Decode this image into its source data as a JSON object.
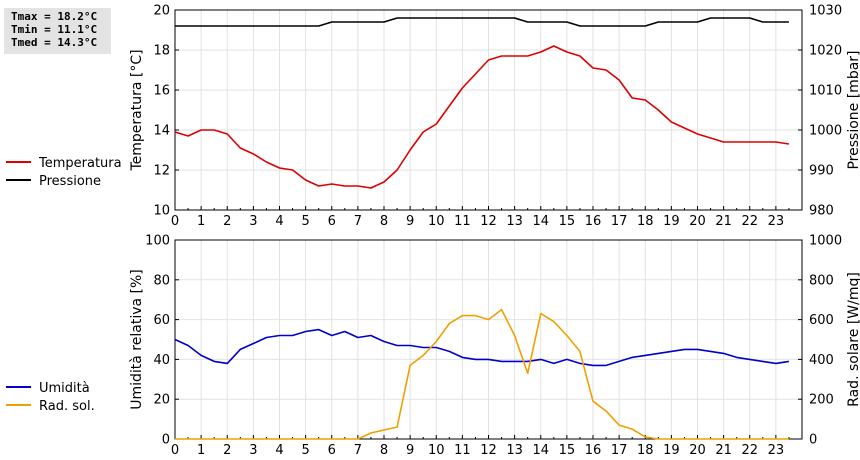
{
  "stats": {
    "tmax": "Tmax = 18.2°C",
    "tmin": "Tmin = 11.1°C",
    "tmed": "Tmed = 14.3°C"
  },
  "chart_data": [
    {
      "type": "line",
      "x": [
        0,
        0.5,
        1,
        1.5,
        2,
        2.5,
        3,
        3.5,
        4,
        4.5,
        5,
        5.5,
        6,
        6.5,
        7,
        7.5,
        8,
        8.5,
        9,
        9.5,
        10,
        10.5,
        11,
        11.5,
        12,
        12.5,
        13,
        13.5,
        14,
        14.5,
        15,
        15.5,
        16,
        16.5,
        17,
        17.5,
        18,
        18.5,
        19,
        19.5,
        20,
        20.5,
        21,
        21.5,
        22,
        22.5,
        23,
        23.5
      ],
      "xlim": [
        0,
        24
      ],
      "xticks": [
        "0",
        "1",
        "2",
        "3",
        "4",
        "5",
        "6",
        "7",
        "8",
        "9",
        "10",
        "11",
        "12",
        "13",
        "14",
        "15",
        "16",
        "17",
        "18",
        "19",
        "20",
        "21",
        "22",
        "23"
      ],
      "ylabel": "Temperatura [°C]",
      "ylim": [
        10,
        20
      ],
      "yticks": [
        "10",
        "12",
        "14",
        "16",
        "18",
        "20"
      ],
      "y2label": "Pressione [mbar]",
      "y2lim": [
        980,
        1030
      ],
      "y2ticks": [
        "980",
        "990",
        "1000",
        "1010",
        "1020",
        "1030"
      ],
      "grid": true,
      "legend_position": "left",
      "series": [
        {
          "name": "Temperatura",
          "axis": "left",
          "color": "#dd0000",
          "values": [
            13.9,
            13.7,
            14.0,
            14.0,
            13.8,
            13.1,
            12.8,
            12.4,
            12.1,
            12.0,
            11.5,
            11.2,
            11.3,
            11.2,
            11.2,
            11.1,
            11.4,
            12.0,
            13.0,
            13.9,
            14.3,
            15.2,
            16.1,
            16.8,
            17.5,
            17.7,
            17.7,
            17.7,
            17.9,
            18.2,
            17.9,
            17.7,
            17.1,
            17.0,
            16.5,
            15.6,
            15.5,
            15.0,
            14.4,
            14.1,
            13.8,
            13.6,
            13.4,
            13.4,
            13.4,
            13.4,
            13.4,
            13.3
          ]
        },
        {
          "name": "Pressione",
          "axis": "right",
          "color": "#000000",
          "values": [
            1026,
            1026,
            1026,
            1026,
            1026,
            1026,
            1026,
            1026,
            1026,
            1026,
            1026,
            1026,
            1027,
            1027,
            1027,
            1027,
            1027,
            1028,
            1028,
            1028,
            1028,
            1028,
            1028,
            1028,
            1028,
            1028,
            1028,
            1027,
            1027,
            1027,
            1027,
            1026,
            1026,
            1026,
            1026,
            1026,
            1026,
            1027,
            1027,
            1027,
            1027,
            1028,
            1028,
            1028,
            1028,
            1027,
            1027,
            1027
          ]
        }
      ]
    },
    {
      "type": "line",
      "x": [
        0,
        0.5,
        1,
        1.5,
        2,
        2.5,
        3,
        3.5,
        4,
        4.5,
        5,
        5.5,
        6,
        6.5,
        7,
        7.5,
        8,
        8.5,
        9,
        9.5,
        10,
        10.5,
        11,
        11.5,
        12,
        12.5,
        13,
        13.5,
        14,
        14.5,
        15,
        15.5,
        16,
        16.5,
        17,
        17.5,
        18,
        18.5,
        19,
        19.5,
        20,
        20.5,
        21,
        21.5,
        22,
        22.5,
        23,
        23.5
      ],
      "xlim": [
        0,
        24
      ],
      "xticks": [
        "0",
        "1",
        "2",
        "3",
        "4",
        "5",
        "6",
        "7",
        "8",
        "9",
        "10",
        "11",
        "12",
        "13",
        "14",
        "15",
        "16",
        "17",
        "18",
        "19",
        "20",
        "21",
        "22",
        "23"
      ],
      "ylabel": "Umidità relativa [%]",
      "ylim": [
        0,
        100
      ],
      "yticks": [
        "0",
        "20",
        "40",
        "60",
        "80",
        "100"
      ],
      "y2label": "Rad. solare [W/mq]",
      "y2lim": [
        0,
        1000
      ],
      "y2ticks": [
        "0",
        "200",
        "400",
        "600",
        "800",
        "1000"
      ],
      "grid": true,
      "legend_position": "left",
      "series": [
        {
          "name": "Umidità",
          "axis": "left",
          "color": "#0000cc",
          "values": [
            50,
            47,
            42,
            39,
            38,
            45,
            48,
            51,
            52,
            52,
            54,
            55,
            52,
            54,
            51,
            52,
            49,
            47,
            47,
            46,
            46,
            44,
            41,
            40,
            40,
            39,
            39,
            39,
            40,
            38,
            40,
            38,
            37,
            37,
            39,
            41,
            42,
            43,
            44,
            45,
            45,
            44,
            43,
            41,
            40,
            39,
            38,
            39
          ]
        },
        {
          "name": "Rad. sol.",
          "axis": "right",
          "color": "#f0a000",
          "values": [
            0,
            0,
            0,
            0,
            0,
            0,
            0,
            0,
            0,
            0,
            0,
            0,
            0,
            0,
            0,
            30,
            45,
            60,
            370,
            420,
            490,
            580,
            620,
            620,
            600,
            650,
            520,
            330,
            630,
            590,
            520,
            440,
            190,
            140,
            70,
            50,
            10,
            0,
            0,
            0,
            0,
            0,
            0,
            0,
            0,
            0,
            0,
            0
          ]
        }
      ]
    }
  ]
}
